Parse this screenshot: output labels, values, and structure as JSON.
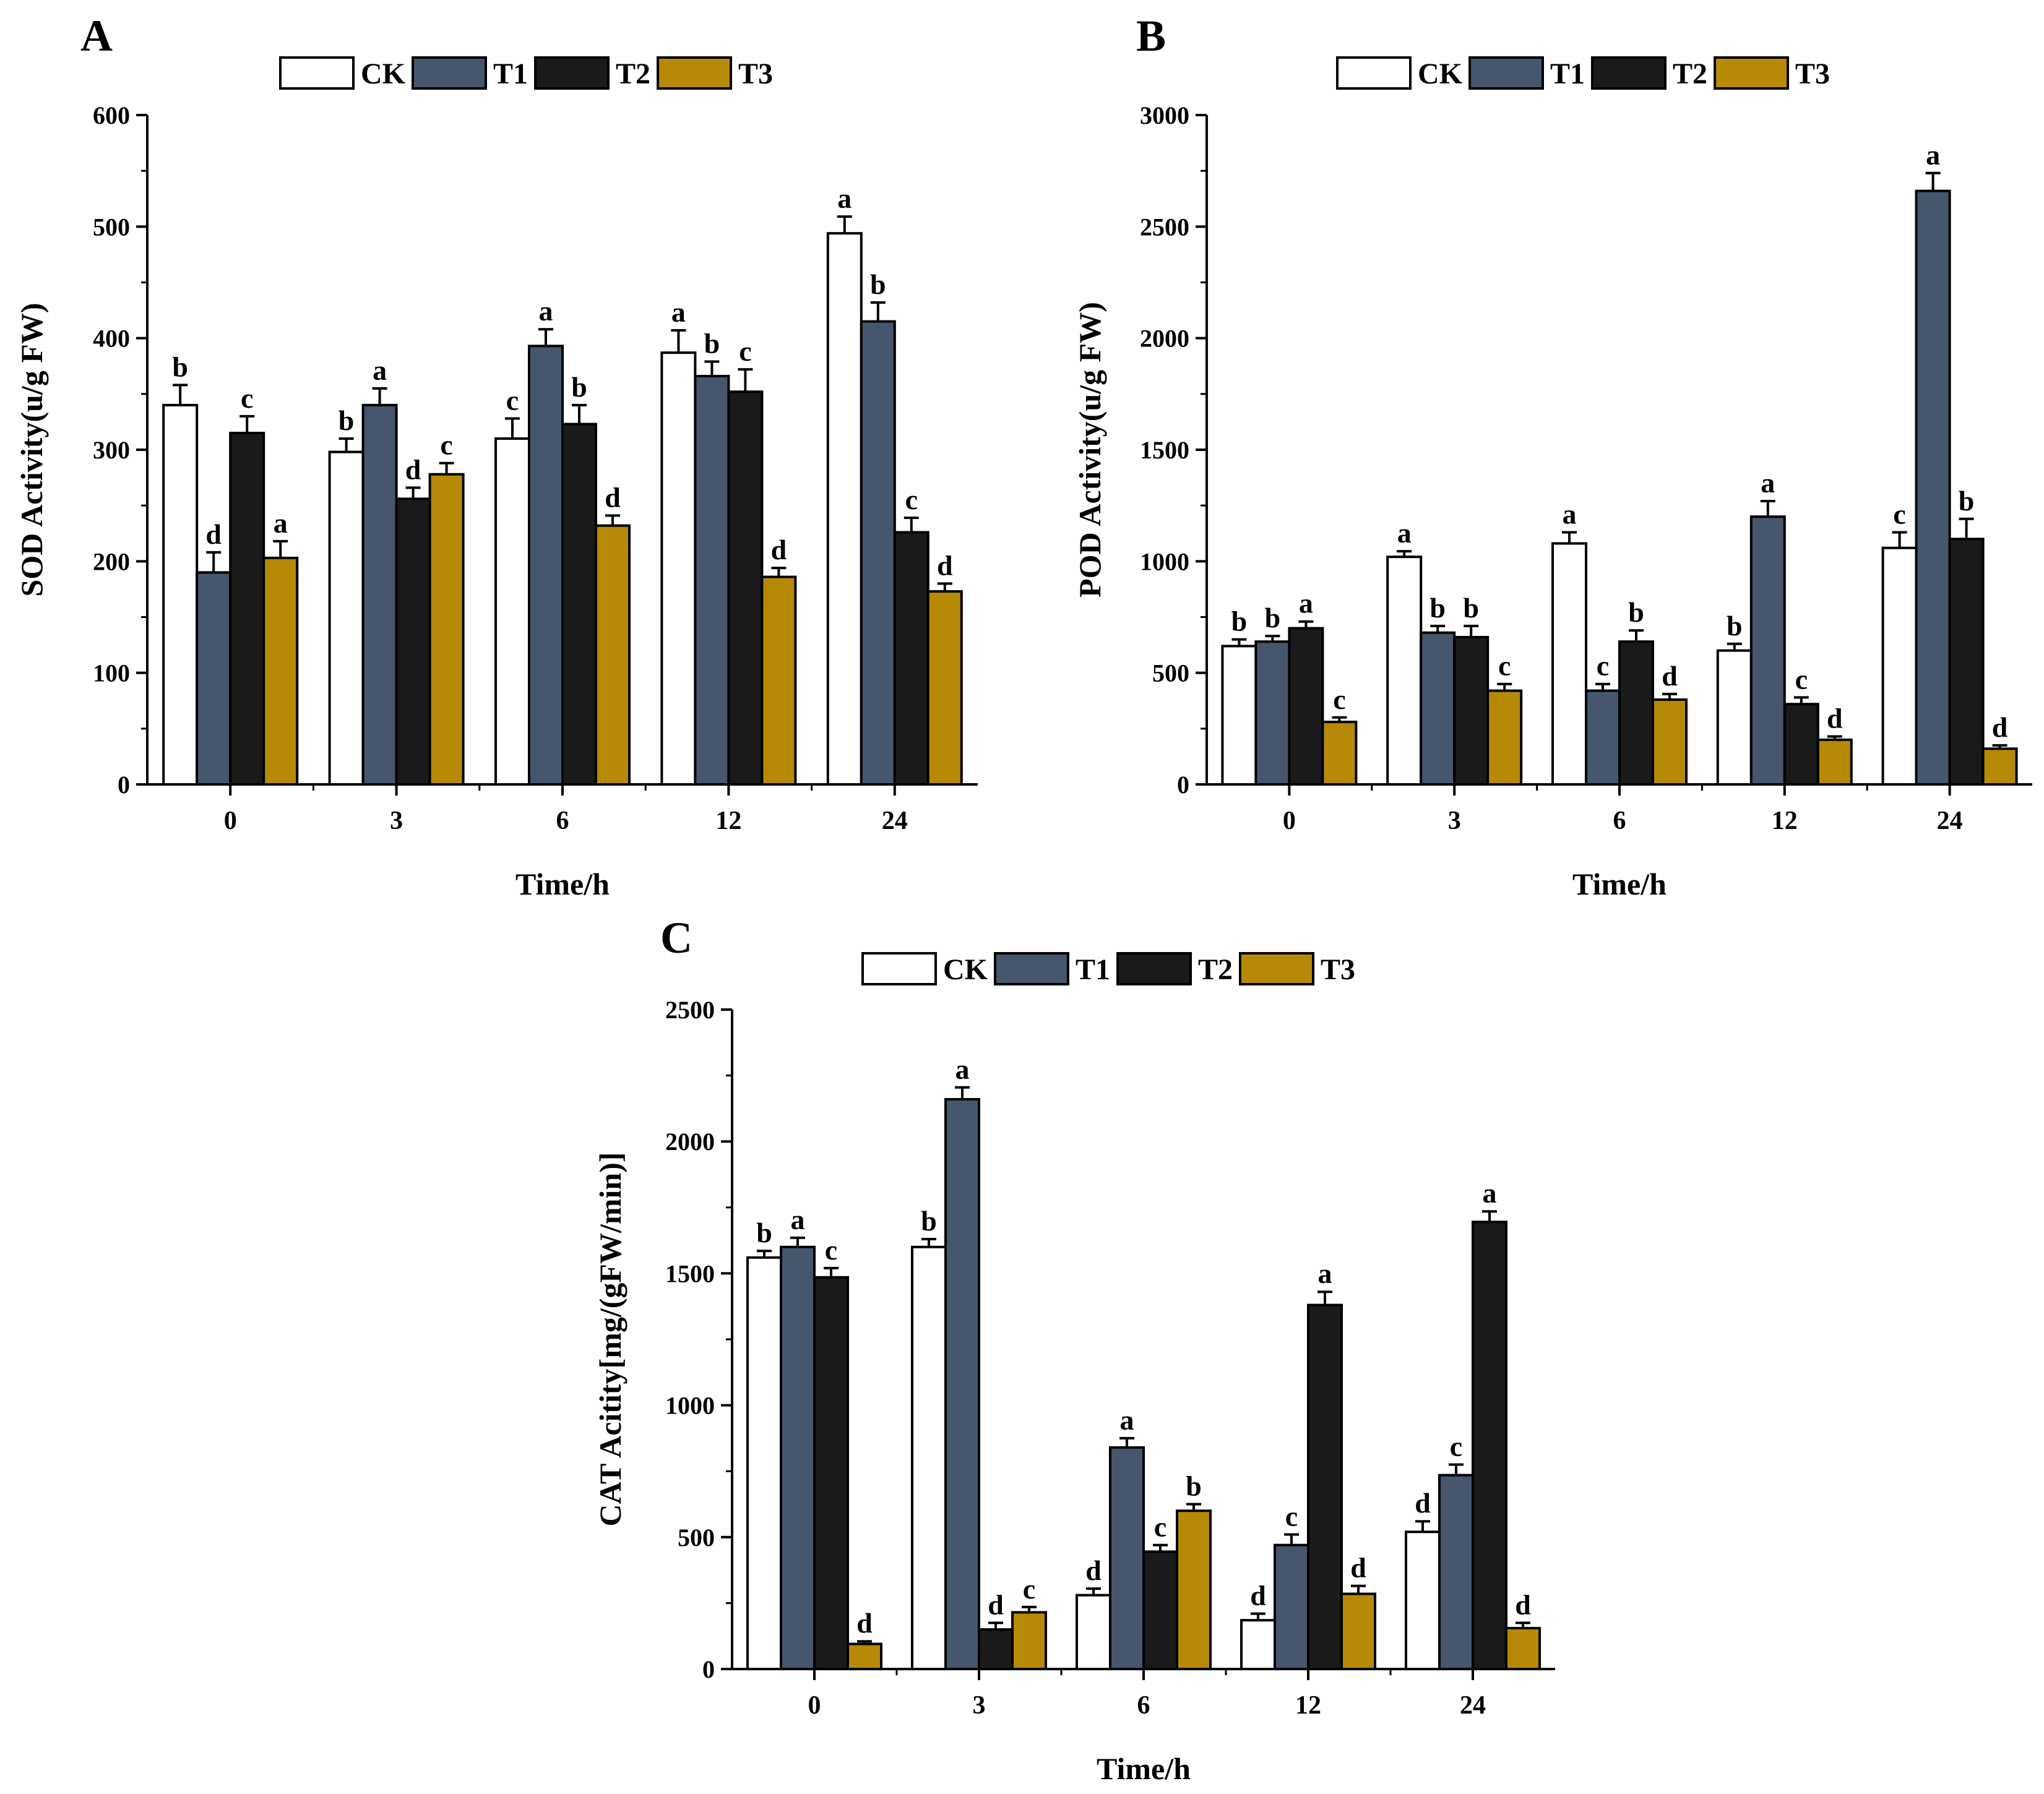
{
  "figure": {
    "series_colors": {
      "CK": "#ffffff",
      "T1": "#46566d",
      "T2": "#1a1a1a",
      "T3": "#b68a06"
    }
  },
  "chart_data": [
    {
      "panel_label": "A",
      "type": "bar",
      "xlabel": "Time/h",
      "ylabel": "SOD Activity(u/g FW)",
      "categories": [
        "0",
        "3",
        "6",
        "12",
        "24"
      ],
      "ylim": [
        0,
        600
      ],
      "yticks": [
        "0",
        "100",
        "200",
        "300",
        "400",
        "500",
        "600"
      ],
      "legend_position": "top",
      "series": [
        {
          "name": "CK",
          "values": [
            340,
            298,
            310,
            387,
            494
          ],
          "errors": [
            18,
            12,
            18,
            20,
            15
          ],
          "letters": [
            "b",
            "b",
            "c",
            "a",
            "a"
          ]
        },
        {
          "name": "T1",
          "values": [
            190,
            340,
            393,
            366,
            415
          ],
          "errors": [
            18,
            15,
            15,
            13,
            17
          ],
          "letters": [
            "d",
            "a",
            "a",
            "b",
            "b"
          ]
        },
        {
          "name": "T2",
          "values": [
            315,
            256,
            323,
            352,
            226
          ],
          "errors": [
            15,
            10,
            17,
            20,
            13
          ],
          "letters": [
            "c",
            "d",
            "b",
            "c",
            "c"
          ]
        },
        {
          "name": "T3",
          "values": [
            203,
            278,
            232,
            186,
            173
          ],
          "errors": [
            15,
            10,
            9,
            8,
            7
          ],
          "letters": [
            "a",
            "c",
            "d",
            "d",
            "d"
          ]
        }
      ]
    },
    {
      "panel_label": "B",
      "type": "bar",
      "xlabel": "Time/h",
      "ylabel": "POD Activity(u/g FW)",
      "categories": [
        "0",
        "3",
        "6",
        "12",
        "24"
      ],
      "ylim": [
        0,
        3000
      ],
      "yticks": [
        "0",
        "500",
        "1000",
        "1500",
        "2000",
        "2500",
        "3000"
      ],
      "legend_position": "top",
      "series": [
        {
          "name": "CK",
          "values": [
            620,
            1020,
            1080,
            600,
            1060
          ],
          "errors": [
            30,
            25,
            50,
            30,
            70
          ],
          "letters": [
            "b",
            "a",
            "a",
            "b",
            "c"
          ]
        },
        {
          "name": "T1",
          "values": [
            640,
            680,
            420,
            1200,
            2660
          ],
          "errors": [
            25,
            30,
            30,
            70,
            80
          ],
          "letters": [
            "b",
            "b",
            "c",
            "a",
            "a"
          ]
        },
        {
          "name": "T2",
          "values": [
            700,
            660,
            640,
            360,
            1100
          ],
          "errors": [
            30,
            50,
            50,
            30,
            90
          ],
          "letters": [
            "a",
            "b",
            "b",
            "c",
            "b"
          ]
        },
        {
          "name": "T3",
          "values": [
            280,
            420,
            380,
            200,
            160
          ],
          "errors": [
            20,
            30,
            25,
            15,
            15
          ],
          "letters": [
            "c",
            "c",
            "d",
            "d",
            "d"
          ]
        }
      ]
    },
    {
      "panel_label": "C",
      "type": "bar",
      "xlabel": "Time/h",
      "ylabel": "CAT Acitity[mg/(gFW/min)]",
      "categories": [
        "0",
        "3",
        "6",
        "12",
        "24"
      ],
      "ylim": [
        0,
        2500
      ],
      "yticks": [
        "0",
        "500",
        "1000",
        "1500",
        "2000",
        "2500"
      ],
      "legend_position": "top",
      "series": [
        {
          "name": "CK",
          "values": [
            1560,
            1600,
            280,
            185,
            520
          ],
          "errors": [
            25,
            30,
            25,
            25,
            40
          ],
          "letters": [
            "b",
            "b",
            "d",
            "d",
            "d"
          ]
        },
        {
          "name": "T1",
          "values": [
            1600,
            2160,
            840,
            470,
            735
          ],
          "errors": [
            35,
            45,
            35,
            40,
            40
          ],
          "letters": [
            "a",
            "a",
            "a",
            "c",
            "c"
          ]
        },
        {
          "name": "T2",
          "values": [
            1485,
            150,
            445,
            1380,
            1695
          ],
          "errors": [
            35,
            25,
            25,
            50,
            40
          ],
          "letters": [
            "c",
            "d",
            "c",
            "a",
            "a"
          ]
        },
        {
          "name": "T3",
          "values": [
            95,
            215,
            600,
            285,
            155
          ],
          "errors": [
            10,
            20,
            25,
            30,
            20
          ],
          "letters": [
            "d",
            "c",
            "b",
            "d",
            "d"
          ]
        }
      ]
    }
  ]
}
